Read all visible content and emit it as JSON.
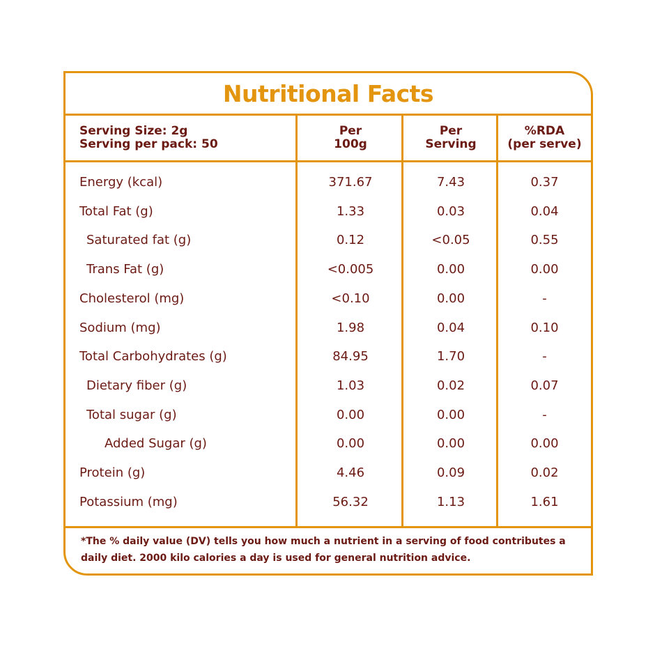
{
  "title": "Nutritional Facts",
  "header": {
    "serving_size": "Serving Size: 2g",
    "serving_per_pack": "Serving per pack: 50",
    "col_per100_line1": "Per",
    "col_per100_line2": "100g",
    "col_perserving_line1": "Per",
    "col_perserving_line2": "Serving",
    "col_rda_line1": "%RDA",
    "col_rda_line2": "(per serve)"
  },
  "rows": [
    {
      "name": "Energy (kcal)",
      "per100": "371.67",
      "per_serving": "7.43",
      "rda": "0.37",
      "indent": 0
    },
    {
      "name": "Total Fat (g)",
      "per100": "1.33",
      "per_serving": "0.03",
      "rda": "0.04",
      "indent": 0
    },
    {
      "name": "Saturated fat (g)",
      "per100": "0.12",
      "per_serving": "<0.05",
      "rda": "0.55",
      "indent": 1
    },
    {
      "name": "Trans Fat (g)",
      "per100": "<0.005",
      "per_serving": "0.00",
      "rda": "0.00",
      "indent": 1
    },
    {
      "name": "Cholesterol (mg)",
      "per100": "<0.10",
      "per_serving": "0.00",
      "rda": "-",
      "indent": 0
    },
    {
      "name": "Sodium (mg)",
      "per100": "1.98",
      "per_serving": "0.04",
      "rda": "0.10",
      "indent": 0
    },
    {
      "name": "Total Carbohydrates  (g)",
      "per100": "84.95",
      "per_serving": "1.70",
      "rda": "-",
      "indent": 0
    },
    {
      "name": "Dietary fiber (g)",
      "per100": "1.03",
      "per_serving": "0.02",
      "rda": "0.07",
      "indent": 1
    },
    {
      "name": "Total sugar (g)",
      "per100": "0.00",
      "per_serving": "0.00",
      "rda": "-",
      "indent": 1
    },
    {
      "name": "Added Sugar (g)",
      "per100": "0.00",
      "per_serving": "0.00",
      "rda": "0.00",
      "indent": 2
    },
    {
      "name": "Protein (g)",
      "per100": "4.46",
      "per_serving": "0.09",
      "rda": "0.02",
      "indent": 0
    },
    {
      "name": "Potassium (mg)",
      "per100": "56.32",
      "per_serving": "1.13",
      "rda": "1.61",
      "indent": 0
    }
  ],
  "footer": {
    "line1": "*The % daily value (DV) tells you how much a nutrient in a serving of food contributes a",
    "line2": "daily diet. 2000 kilo calories a day is used for general nutrition advice."
  },
  "colors": {
    "border": "#e3950f",
    "title": "#e3950f",
    "text": "#6b1a14"
  }
}
